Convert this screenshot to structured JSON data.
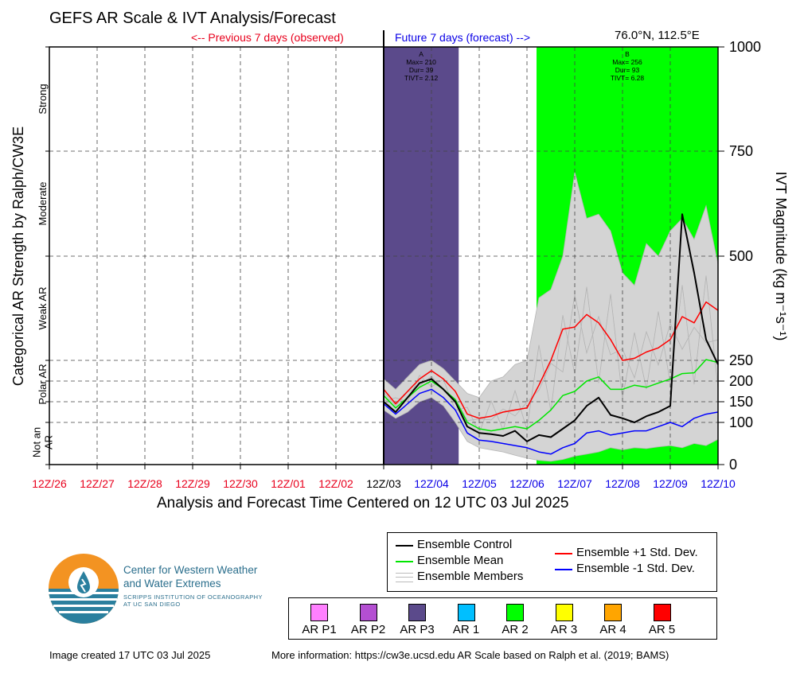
{
  "title": "GEFS AR Scale & IVT Analysis/Forecast",
  "previous_label": "<-- Previous 7 days (observed)",
  "future_label": "Future 7 days (forecast) -->",
  "location": "76.0°N, 112.5°E",
  "colors": {
    "observed": "#e8001c",
    "forecast": "#0a00e6",
    "ar_p3": "#5b4a8b",
    "ar2": "#00ff00",
    "members": "#b5b5b5",
    "spread_fill": "#d4d4d4",
    "control": "#000000",
    "mean": "#00e600",
    "plus_std": "#ff0000",
    "minus_std": "#0000ff"
  },
  "chart_data": {
    "type": "line",
    "xlabel": "Analysis and Forecast Time Centered on 12 UTC 03 Jul 2025",
    "ylabel_right": "IVT Magnitude (kg m⁻¹s⁻¹)",
    "ylabel_left": "Categorical AR Strength by Ralph/CW3E",
    "y_nonlinear_ticks": [
      0,
      100,
      150,
      200,
      250,
      500,
      750,
      1000
    ],
    "ylim": [
      0,
      1000
    ],
    "x_ticks": [
      {
        "label": "12Z/26",
        "observed": true
      },
      {
        "label": "12Z/27",
        "observed": true
      },
      {
        "label": "12Z/28",
        "observed": true
      },
      {
        "label": "12Z/29",
        "observed": true
      },
      {
        "label": "12Z/30",
        "observed": true
      },
      {
        "label": "12Z/01",
        "observed": true
      },
      {
        "label": "12Z/02",
        "observed": true
      },
      {
        "label": "12Z/03",
        "observed": null
      },
      {
        "label": "12Z/04",
        "observed": false
      },
      {
        "label": "12Z/05",
        "observed": false
      },
      {
        "label": "12Z/06",
        "observed": false
      },
      {
        "label": "12Z/07",
        "observed": false
      },
      {
        "label": "12Z/08",
        "observed": false
      },
      {
        "label": "12Z/09",
        "observed": false
      },
      {
        "label": "12Z/10",
        "observed": false
      }
    ],
    "x_unit": "days after 12Z/26",
    "categories_left": [
      {
        "label": "Not an AR",
        "lines": [
          "Not an",
          "AR"
        ]
      },
      {
        "label": "Polar AR",
        "lines": [
          "Polar AR"
        ]
      },
      {
        "label": "Weak AR",
        "lines": [
          "Weak AR"
        ]
      },
      {
        "label": "Moderate",
        "lines": [
          "Moderate"
        ]
      },
      {
        "label": "Strong",
        "lines": [
          "Strong"
        ]
      }
    ],
    "ar_events": [
      {
        "id": "A",
        "start": 7.0,
        "end": 8.57,
        "class": "AR P3",
        "color": "#5b4a8b",
        "lines": [
          "A",
          "Max= 210",
          "Dur= 39",
          "TIVT= 2.12"
        ]
      },
      {
        "id": "B",
        "start": 10.2,
        "end": 14.0,
        "class": "AR 2",
        "color": "#00ff00",
        "lines": [
          "B",
          "Max= 256",
          "Dur= 93",
          "TIVT= 6.28"
        ]
      }
    ],
    "series": [
      {
        "name": "Ensemble Control",
        "color": "#000000",
        "x": [
          7.0,
          7.25,
          7.5,
          7.75,
          8.0,
          8.25,
          8.5,
          8.75,
          9.0,
          9.25,
          9.5,
          9.75,
          10.0,
          10.25,
          10.5,
          10.75,
          11.0,
          11.25,
          11.5,
          11.75,
          12.0,
          12.25,
          12.5,
          12.75,
          13.0,
          13.25,
          13.5,
          13.75,
          14.0
        ],
        "y": [
          150,
          125,
          160,
          195,
          205,
          180,
          150,
          90,
          75,
          72,
          68,
          80,
          55,
          70,
          65,
          85,
          105,
          140,
          160,
          118,
          110,
          100,
          115,
          125,
          140,
          600,
          460,
          300,
          240
        ]
      },
      {
        "name": "Ensemble Mean",
        "color": "#00e600",
        "x": [
          7.0,
          7.25,
          7.5,
          7.75,
          8.0,
          8.25,
          8.5,
          8.75,
          9.0,
          9.25,
          9.5,
          9.75,
          10.0,
          10.25,
          10.5,
          10.75,
          11.0,
          11.25,
          11.5,
          11.75,
          12.0,
          12.25,
          12.5,
          12.75,
          13.0,
          13.25,
          13.5,
          13.75,
          14.0
        ],
        "y": [
          165,
          135,
          160,
          185,
          200,
          180,
          155,
          100,
          85,
          80,
          85,
          90,
          85,
          105,
          130,
          165,
          175,
          200,
          210,
          180,
          180,
          190,
          185,
          195,
          205,
          218,
          220,
          252,
          245
        ]
      },
      {
        "name": "Ensemble +1 Std. Dev.",
        "color": "#ff0000",
        "x": [
          7.0,
          7.25,
          7.5,
          7.75,
          8.0,
          8.25,
          8.5,
          8.75,
          9.0,
          9.25,
          9.5,
          9.75,
          10.0,
          10.25,
          10.5,
          10.75,
          11.0,
          11.25,
          11.5,
          11.75,
          12.0,
          12.25,
          12.5,
          12.75,
          13.0,
          13.25,
          13.5,
          13.75,
          14.0
        ],
        "y": [
          180,
          145,
          175,
          205,
          225,
          205,
          175,
          120,
          110,
          115,
          125,
          130,
          135,
          190,
          250,
          325,
          330,
          360,
          340,
          300,
          250,
          255,
          270,
          280,
          300,
          355,
          340,
          390,
          370
        ]
      },
      {
        "name": "Ensemble -1 Std. Dev.",
        "color": "#0000ff",
        "x": [
          7.0,
          7.25,
          7.5,
          7.75,
          8.0,
          8.25,
          8.5,
          8.75,
          9.0,
          9.25,
          9.5,
          9.75,
          10.0,
          10.25,
          10.5,
          10.75,
          11.0,
          11.25,
          11.5,
          11.75,
          12.0,
          12.25,
          12.5,
          12.75,
          13.0,
          13.25,
          13.5,
          13.75,
          14.0
        ],
        "y": [
          145,
          120,
          145,
          170,
          180,
          160,
          130,
          75,
          58,
          55,
          50,
          45,
          40,
          30,
          25,
          40,
          50,
          75,
          80,
          70,
          75,
          80,
          80,
          90,
          100,
          90,
          110,
          120,
          125
        ]
      },
      {
        "name": "Ensemble Members",
        "color": "#b5b5b5",
        "envelope": {
          "x": [
            7.0,
            7.25,
            7.5,
            7.75,
            8.0,
            8.25,
            8.5,
            8.75,
            9.0,
            9.25,
            9.5,
            9.75,
            10.0,
            10.25,
            10.5,
            10.75,
            11.0,
            11.25,
            11.5,
            11.75,
            12.0,
            12.25,
            12.5,
            12.75,
            13.0,
            13.25,
            13.5,
            13.75,
            14.0
          ],
          "upper": [
            205,
            180,
            210,
            240,
            250,
            230,
            200,
            170,
            160,
            200,
            210,
            240,
            250,
            400,
            420,
            500,
            700,
            590,
            600,
            560,
            460,
            430,
            530,
            500,
            560,
            590,
            540,
            620,
            480
          ],
          "lower": [
            130,
            110,
            125,
            150,
            160,
            140,
            100,
            55,
            40,
            35,
            30,
            22,
            15,
            10,
            8,
            12,
            20,
            25,
            30,
            40,
            35,
            40,
            38,
            42,
            45,
            40,
            50,
            45,
            60
          ]
        }
      }
    ]
  },
  "legend": {
    "control": "Ensemble Control",
    "mean": "Ensemble Mean",
    "members": "Ensemble Members",
    "plus": "Ensemble +1 Std. Dev.",
    "minus": "Ensemble -1 Std. Dev."
  },
  "ar_scale_legend": [
    {
      "label": "AR P1",
      "color": "#ff80ff"
    },
    {
      "label": "AR P2",
      "color": "#b44fd2"
    },
    {
      "label": "AR P3",
      "color": "#5b4a8b"
    },
    {
      "label": "AR 1",
      "color": "#00bfff"
    },
    {
      "label": "AR 2",
      "color": "#00ff00"
    },
    {
      "label": "AR 3",
      "color": "#ffff00"
    },
    {
      "label": "AR 4",
      "color": "#ffa500"
    },
    {
      "label": "AR 5",
      "color": "#ff0000"
    }
  ],
  "logo": {
    "line1": "Center for Western Weather",
    "line2": "and Water Extremes",
    "line3": "SCRIPPS INSTITUTION OF OCEANOGRAPHY",
    "line4": "AT UC SAN DIEGO"
  },
  "footer": {
    "created": "Image created 17 UTC 03 Jul 2025",
    "info": "More information: https://cw3e.ucsd.edu AR Scale based on Ralph et al. (2019; BAMS)"
  }
}
